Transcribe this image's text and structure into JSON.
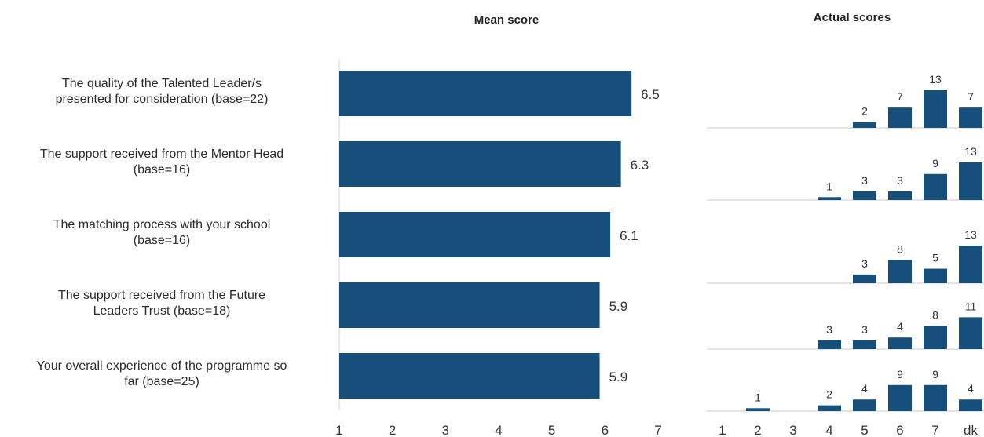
{
  "chart_data": [
    {
      "type": "bar",
      "orientation": "horizontal",
      "title": "Mean score",
      "categories": [
        "The quality of the Talented  Leader/s presented for consideration (base=22)",
        "The support received from the  Mentor Head (base=16)",
        "The matching process with your  school (base=16)",
        "The support received from the  Future Leaders Trust (base=18)",
        "Your overall experience of the  programme so far (base=25)"
      ],
      "category_lines": [
        [
          "The quality of the Talented  Leader/s",
          "presented for consideration (base=22)"
        ],
        [
          "The support received from the  Mentor Head",
          "(base=16)"
        ],
        [
          "The matching process with your  school",
          "(base=16)"
        ],
        [
          "The support received from the  Future",
          "Leaders Trust (base=18)"
        ],
        [
          "Your overall experience of the  programme so",
          "far (base=25)"
        ]
      ],
      "values": [
        6.5,
        6.3,
        6.1,
        5.9,
        5.9
      ],
      "value_labels": [
        "6.5",
        "6.3",
        "6.1",
        "5.9",
        "5.9"
      ],
      "xlim": [
        1,
        7
      ],
      "xticks": [
        "1",
        "2",
        "3",
        "4",
        "5",
        "6",
        "7"
      ],
      "color": "#16507a",
      "grid": false
    },
    {
      "type": "bar",
      "title": "Actual scores",
      "categories": [
        "1",
        "2",
        "3",
        "4",
        "5",
        "6",
        "7",
        "dk"
      ],
      "series": [
        {
          "values": [
            0,
            0,
            0,
            0,
            2,
            7,
            13,
            7
          ]
        },
        {
          "values": [
            0,
            0,
            0,
            1,
            3,
            3,
            9,
            13
          ]
        },
        {
          "values": [
            0,
            0,
            0,
            0,
            3,
            8,
            5,
            13
          ]
        },
        {
          "values": [
            0,
            0,
            0,
            3,
            3,
            4,
            8,
            11
          ]
        },
        {
          "values": [
            0,
            1,
            0,
            2,
            4,
            9,
            9,
            4
          ]
        }
      ],
      "ylim": [
        0,
        13
      ],
      "color": "#16507a",
      "grid": false
    }
  ]
}
